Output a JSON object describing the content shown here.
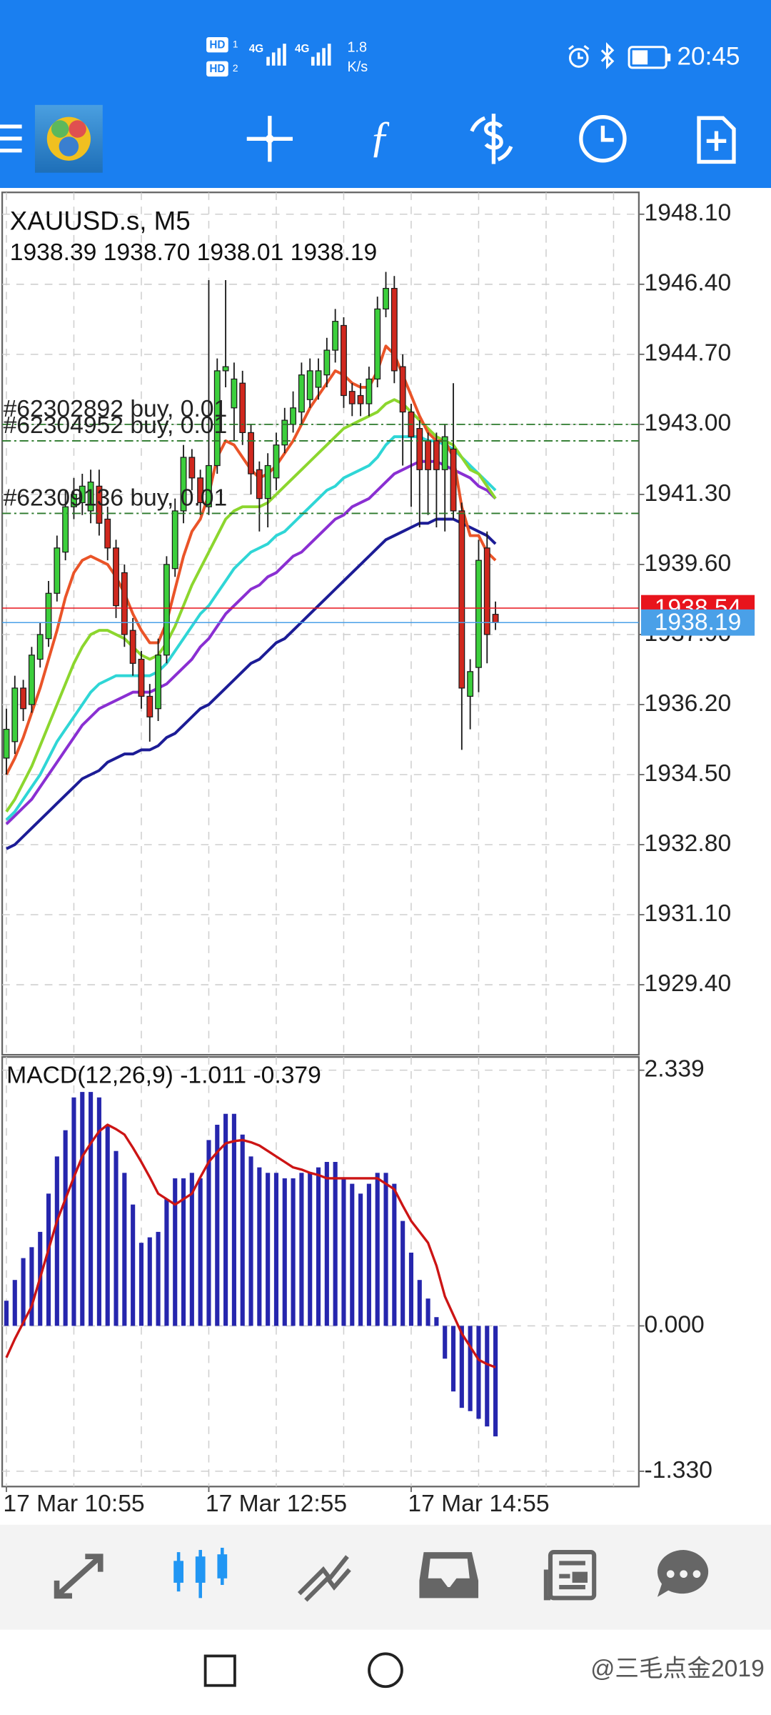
{
  "status_bar": {
    "sims": [
      {
        "label": "HD",
        "slot": "1"
      },
      {
        "label": "HD",
        "slot": "2"
      }
    ],
    "networks": [
      "4G",
      "4G"
    ],
    "speed": "1.8",
    "speed_unit": "K/s",
    "time": "20:45"
  },
  "chart_data": [
    {
      "type": "candlestick",
      "title": "XAUUSD.s, M5",
      "subtitle": "1938.39 1938.70 1938.01 1938.19",
      "open": [
        1934.9,
        1935.3,
        1936.6,
        1936.2,
        1937.3,
        1937.8,
        1938.9,
        1939.9,
        1941.0,
        1941.1,
        1940.9,
        1941.5,
        1940.7,
        1940.0,
        1939.4,
        1938.0,
        1937.3,
        1936.4,
        1936.1,
        1937.4,
        1939.5,
        1940.9,
        1942.2,
        1941.7,
        1941.0,
        1942.0,
        1944.3,
        1943.4,
        1944.0,
        1942.8,
        1941.9,
        1941.2,
        1941.7,
        1942.5,
        1943.0,
        1943.3,
        1943.6,
        1943.9,
        1944.2,
        1944.8,
        1945.4,
        1943.8,
        1943.7,
        1943.5,
        1944.1,
        1945.8,
        1946.3,
        1944.4,
        1943.3,
        1942.9,
        1942.6,
        1942.6,
        1941.9,
        1942.4,
        1940.9,
        1936.4,
        1937.1,
        1940.0,
        1938.39
      ],
      "high": [
        1936.1,
        1936.9,
        1936.8,
        1937.6,
        1938.2,
        1939.2,
        1940.3,
        1941.4,
        1941.7,
        1941.8,
        1941.9,
        1941.9,
        1941.0,
        1940.2,
        1939.6,
        1938.3,
        1937.5,
        1936.7,
        1937.8,
        1939.8,
        1941.2,
        1942.5,
        1942.4,
        1941.9,
        1946.5,
        1944.6,
        1946.5,
        1944.5,
        1944.3,
        1943.0,
        1942.1,
        1942.3,
        1942.8,
        1943.4,
        1943.8,
        1944.5,
        1944.6,
        1944.6,
        1945.1,
        1945.8,
        1945.6,
        1944.0,
        1944.0,
        1944.4,
        1946.1,
        1946.7,
        1946.6,
        1944.7,
        1943.5,
        1943.1,
        1942.8,
        1942.8,
        1943.0,
        1944.0,
        1941.1,
        1937.3,
        1940.2,
        1940.4,
        1938.7
      ],
      "low": [
        1934.5,
        1935.0,
        1935.8,
        1936.0,
        1937.1,
        1937.6,
        1938.7,
        1939.7,
        1940.7,
        1940.8,
        1940.6,
        1940.3,
        1939.7,
        1938.3,
        1937.6,
        1936.9,
        1936.1,
        1935.3,
        1935.8,
        1937.2,
        1939.3,
        1940.6,
        1941.4,
        1940.8,
        1940.8,
        1941.8,
        1943.9,
        1942.6,
        1942.5,
        1941.3,
        1940.4,
        1940.5,
        1941.4,
        1942.3,
        1942.8,
        1943.0,
        1943.4,
        1943.6,
        1943.9,
        1944.5,
        1943.4,
        1943.2,
        1943.2,
        1943.2,
        1943.9,
        1945.6,
        1944.0,
        1942.0,
        1941.0,
        1940.5,
        1940.8,
        1940.5,
        1940.4,
        1940.7,
        1935.1,
        1935.6,
        1936.5,
        1937.2,
        1938.01
      ],
      "close": [
        1935.6,
        1936.6,
        1936.1,
        1937.4,
        1937.9,
        1938.9,
        1940.0,
        1941.0,
        1941.3,
        1941.5,
        1941.6,
        1940.6,
        1940.0,
        1938.6,
        1937.9,
        1937.2,
        1936.4,
        1935.9,
        1937.4,
        1939.6,
        1940.9,
        1942.2,
        1941.7,
        1941.1,
        1942.0,
        1944.3,
        1944.4,
        1944.1,
        1942.8,
        1941.8,
        1941.2,
        1942.0,
        1942.5,
        1943.1,
        1943.4,
        1944.2,
        1944.3,
        1944.3,
        1944.8,
        1945.5,
        1943.7,
        1943.5,
        1943.5,
        1944.1,
        1945.8,
        1946.3,
        1944.3,
        1943.3,
        1942.7,
        1941.9,
        1941.9,
        1941.9,
        1942.7,
        1940.9,
        1936.6,
        1937.0,
        1939.7,
        1937.9,
        1938.19
      ],
      "colors": {
        "up": "#3ccf3c",
        "down": "#d0281e",
        "outline": "#1a1a1a"
      },
      "series": [
        {
          "color": "#1c1c96",
          "values": [
            1932.7,
            1932.8,
            1933.0,
            1933.2,
            1933.4,
            1933.6,
            1933.8,
            1934.0,
            1934.2,
            1934.4,
            1934.5,
            1934.6,
            1934.8,
            1934.9,
            1935.0,
            1935.0,
            1935.1,
            1935.1,
            1935.2,
            1935.4,
            1935.5,
            1935.7,
            1935.9,
            1936.1,
            1936.2,
            1936.4,
            1936.6,
            1936.8,
            1937.0,
            1937.2,
            1937.3,
            1937.5,
            1937.7,
            1937.8,
            1938.0,
            1938.2,
            1938.4,
            1938.6,
            1938.8,
            1939.0,
            1939.2,
            1939.4,
            1939.6,
            1939.8,
            1940.0,
            1940.2,
            1940.3,
            1940.4,
            1940.5,
            1940.6,
            1940.6,
            1940.7,
            1940.7,
            1940.7,
            1940.6,
            1940.5,
            1940.4,
            1940.3,
            1940.1
          ]
        },
        {
          "color": "#8a2fd2",
          "values": [
            1933.3,
            1933.5,
            1933.7,
            1933.9,
            1934.2,
            1934.5,
            1934.8,
            1935.1,
            1935.4,
            1935.7,
            1935.9,
            1936.1,
            1936.2,
            1936.3,
            1936.4,
            1936.5,
            1936.5,
            1936.5,
            1936.6,
            1936.7,
            1936.9,
            1937.1,
            1937.3,
            1937.6,
            1937.8,
            1938.1,
            1938.4,
            1938.6,
            1938.8,
            1939.0,
            1939.1,
            1939.3,
            1939.4,
            1939.6,
            1939.8,
            1939.9,
            1940.1,
            1940.3,
            1940.5,
            1940.7,
            1940.8,
            1941.0,
            1941.1,
            1941.2,
            1941.4,
            1941.6,
            1941.8,
            1941.9,
            1942.0,
            1942.1,
            1942.1,
            1942.1,
            1942.0,
            1941.9,
            1941.8,
            1941.7,
            1941.5,
            1941.4,
            1941.2
          ]
        },
        {
          "color": "#2fd6d6",
          "values": [
            1933.4,
            1933.6,
            1933.9,
            1934.2,
            1934.5,
            1934.9,
            1935.3,
            1935.6,
            1935.9,
            1936.2,
            1936.5,
            1936.7,
            1936.8,
            1936.9,
            1936.9,
            1936.9,
            1936.9,
            1936.9,
            1937.0,
            1937.2,
            1937.5,
            1937.8,
            1938.1,
            1938.4,
            1938.6,
            1938.9,
            1939.2,
            1939.5,
            1939.7,
            1939.9,
            1940.0,
            1940.1,
            1940.3,
            1940.4,
            1940.6,
            1940.8,
            1941.0,
            1941.2,
            1941.4,
            1941.5,
            1941.7,
            1941.8,
            1941.9,
            1942.0,
            1942.2,
            1942.5,
            1942.7,
            1942.7,
            1942.7,
            1942.7,
            1942.6,
            1942.6,
            1942.5,
            1942.4,
            1942.2,
            1942.0,
            1941.8,
            1941.6,
            1941.4
          ]
        },
        {
          "color": "#8cd62e",
          "values": [
            1933.6,
            1933.9,
            1934.3,
            1934.7,
            1935.2,
            1935.7,
            1936.2,
            1936.7,
            1937.2,
            1937.6,
            1937.9,
            1938.0,
            1938.0,
            1937.9,
            1937.8,
            1937.6,
            1937.4,
            1937.3,
            1937.4,
            1937.7,
            1938.1,
            1938.6,
            1939.1,
            1939.5,
            1939.9,
            1940.3,
            1940.7,
            1940.9,
            1941.0,
            1941.0,
            1941.0,
            1941.1,
            1941.3,
            1941.5,
            1941.7,
            1941.9,
            1942.1,
            1942.3,
            1942.5,
            1942.7,
            1942.9,
            1943.0,
            1943.1,
            1943.2,
            1943.3,
            1943.5,
            1943.6,
            1943.5,
            1943.3,
            1943.1,
            1942.9,
            1942.7,
            1942.6,
            1942.5,
            1942.2,
            1941.9,
            1941.8,
            1941.5,
            1941.2
          ]
        },
        {
          "color": "#ea5428",
          "values": [
            1934.5,
            1934.9,
            1935.4,
            1936.0,
            1936.6,
            1937.3,
            1938.0,
            1938.8,
            1939.4,
            1939.7,
            1939.8,
            1939.7,
            1939.6,
            1939.3,
            1938.9,
            1938.4,
            1938.0,
            1937.7,
            1937.7,
            1938.2,
            1939.0,
            1939.8,
            1940.4,
            1940.7,
            1941.3,
            1942.2,
            1942.6,
            1942.5,
            1942.2,
            1941.9,
            1941.7,
            1941.8,
            1942.0,
            1942.3,
            1942.6,
            1943.0,
            1943.4,
            1943.7,
            1944.0,
            1944.3,
            1944.2,
            1944.0,
            1943.9,
            1943.9,
            1944.3,
            1944.9,
            1944.7,
            1944.2,
            1943.7,
            1943.2,
            1942.8,
            1942.6,
            1942.6,
            1942.2,
            1941.0,
            1940.3,
            1940.3,
            1939.9,
            1939.7
          ]
        }
      ],
      "orders": [
        {
          "label": "#62302892 buy, 0.01",
          "value": 1943.0,
          "color": "#2c7a2c"
        },
        {
          "label": "#62304952 buy, 0.01",
          "value": 1942.6,
          "color": "#2c7a2c"
        },
        {
          "label": "#62309136 buy, 0.01",
          "value": 1940.84,
          "color": "#2c7a2c"
        }
      ],
      "price_lines": [
        {
          "value": 1938.54,
          "color": "#e8141c"
        },
        {
          "value": 1938.19,
          "color": "#4aa0e8"
        }
      ],
      "xlim": [
        -0.5,
        75
      ],
      "xticks": [
        {
          "value": 0,
          "label": "17 Mar 10:55"
        },
        {
          "value": 24,
          "label": "17 Mar 12:55"
        },
        {
          "value": 48,
          "label": "17 Mar 14:55"
        }
      ],
      "xgrid": [
        0,
        8,
        16,
        24,
        32,
        40,
        48,
        56,
        64,
        72
      ],
      "ylim": [
        1927.7,
        1948.63
      ],
      "yticks": [
        {
          "value": 1948.1,
          "label": "1948.10"
        },
        {
          "value": 1946.4,
          "label": "1946.40"
        },
        {
          "value": 1944.7,
          "label": "1944.70"
        },
        {
          "value": 1943.0,
          "label": "1943.00"
        },
        {
          "value": 1941.3,
          "label": "1941.30"
        },
        {
          "value": 1939.6,
          "label": "1939.60"
        },
        {
          "value": 1937.9,
          "label": "1937.90"
        },
        {
          "value": 1936.2,
          "label": "1936.20"
        },
        {
          "value": 1934.5,
          "label": "1934.50"
        },
        {
          "value": 1932.8,
          "label": "1932.80"
        },
        {
          "value": 1931.1,
          "label": "1931.10"
        },
        {
          "value": 1929.4,
          "label": "1929.40"
        }
      ],
      "grid": true
    },
    {
      "type": "bar",
      "title": "MACD(12,26,9)  -1.011  -0.379",
      "values": [
        0.23,
        0.42,
        0.62,
        0.72,
        0.86,
        1.21,
        1.55,
        1.79,
        2.09,
        2.14,
        2.14,
        2.09,
        1.84,
        1.6,
        1.4,
        1.11,
        0.76,
        0.81,
        0.86,
        1.16,
        1.35,
        1.35,
        1.4,
        1.35,
        1.7,
        1.84,
        1.94,
        1.94,
        1.75,
        1.55,
        1.45,
        1.4,
        1.4,
        1.35,
        1.35,
        1.4,
        1.4,
        1.45,
        1.5,
        1.5,
        1.35,
        1.3,
        1.21,
        1.3,
        1.4,
        1.4,
        1.3,
        0.96,
        0.67,
        0.42,
        0.25,
        0.08,
        -0.3,
        -0.6,
        -0.75,
        -0.78,
        -0.85,
        -0.92,
        -1.011
      ],
      "color": "#2626ad",
      "series": [
        {
          "color": "#cc1414",
          "values": [
            -0.29,
            -0.12,
            0.03,
            0.18,
            0.44,
            0.7,
            0.96,
            1.16,
            1.36,
            1.55,
            1.67,
            1.78,
            1.84,
            1.8,
            1.75,
            1.63,
            1.5,
            1.36,
            1.21,
            1.16,
            1.11,
            1.16,
            1.21,
            1.36,
            1.5,
            1.59,
            1.67,
            1.69,
            1.7,
            1.68,
            1.65,
            1.6,
            1.55,
            1.5,
            1.45,
            1.43,
            1.4,
            1.38,
            1.35,
            1.35,
            1.35,
            1.35,
            1.35,
            1.35,
            1.35,
            1.3,
            1.25,
            1.1,
            0.96,
            0.86,
            0.76,
            0.55,
            0.27,
            0.1,
            -0.07,
            -0.19,
            -0.31,
            -0.35,
            -0.379
          ]
        }
      ],
      "xlim": [
        -0.5,
        75
      ],
      "xgrid": [
        0,
        8,
        16,
        24,
        32,
        40,
        48,
        56,
        64,
        72
      ],
      "ylim": [
        -1.47,
        2.46
      ],
      "yticks": [
        {
          "value": 2.339,
          "label": "2.339"
        },
        {
          "value": 0,
          "label": "0.000"
        },
        {
          "value": -1.33,
          "label": "-1.330"
        }
      ],
      "grid": true
    }
  ],
  "watermark": "@三毛点金2019"
}
